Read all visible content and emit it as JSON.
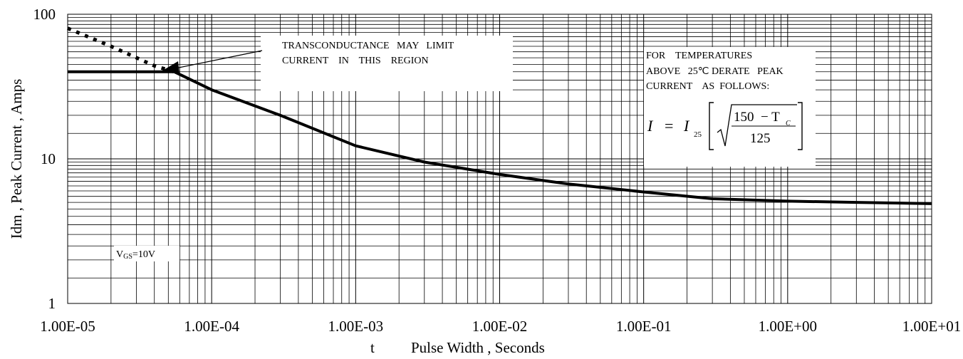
{
  "chart_data": {
    "type": "line",
    "title": "",
    "xlabel": "Pulse Width , Seconds",
    "xlabel_prefix": "t",
    "ylabel": "Idm , Peak Current , Amps",
    "xscale": "log",
    "yscale": "log",
    "xlim": [
      1e-05,
      10
    ],
    "ylim": [
      1,
      100
    ],
    "grid": true,
    "x_tick_labels": [
      "1.00E-05",
      "1.00E-04",
      "1.00E-03",
      "1.00E-02",
      "1.00E-01",
      "1.00E+00",
      "1.00E+01"
    ],
    "y_tick_labels": [
      "1",
      "10",
      "100"
    ],
    "series": [
      {
        "style": "solid",
        "points": [
          [
            1e-05,
            40
          ],
          [
            5.5e-05,
            40
          ],
          [
            0.0001,
            30
          ],
          [
            0.0003,
            20
          ],
          [
            0.001,
            12.3
          ],
          [
            0.003,
            9.5
          ],
          [
            0.01,
            7.8
          ],
          [
            0.03,
            6.7
          ],
          [
            0.1,
            5.9
          ],
          [
            0.3,
            5.3
          ],
          [
            1,
            5.1
          ],
          [
            3,
            5.0
          ],
          [
            10,
            4.9
          ]
        ]
      },
      {
        "style": "dotted",
        "points": [
          [
            1e-05,
            80
          ],
          [
            2e-05,
            60
          ],
          [
            4e-05,
            44
          ],
          [
            5.5e-05,
            40
          ]
        ]
      }
    ],
    "annotations": {
      "transconductance": [
        "TRANSCONDUCTANCE   MAY   LIMIT",
        "CURRENT    IN    THIS    REGION"
      ],
      "derating": [
        "FOR    TEMPERATURES",
        "ABOVE   25℃ DERATE   PEAK",
        "CURRENT    AS  FOLLOWS:"
      ],
      "formula": {
        "lhs": "I",
        "eq": "=",
        "i": "I",
        "sub": "25",
        "num": "150  − T",
        "num_sub": "C",
        "den": "125"
      },
      "vgs": {
        "main": "V",
        "sub": "GS",
        "rest": "=10V"
      }
    }
  }
}
